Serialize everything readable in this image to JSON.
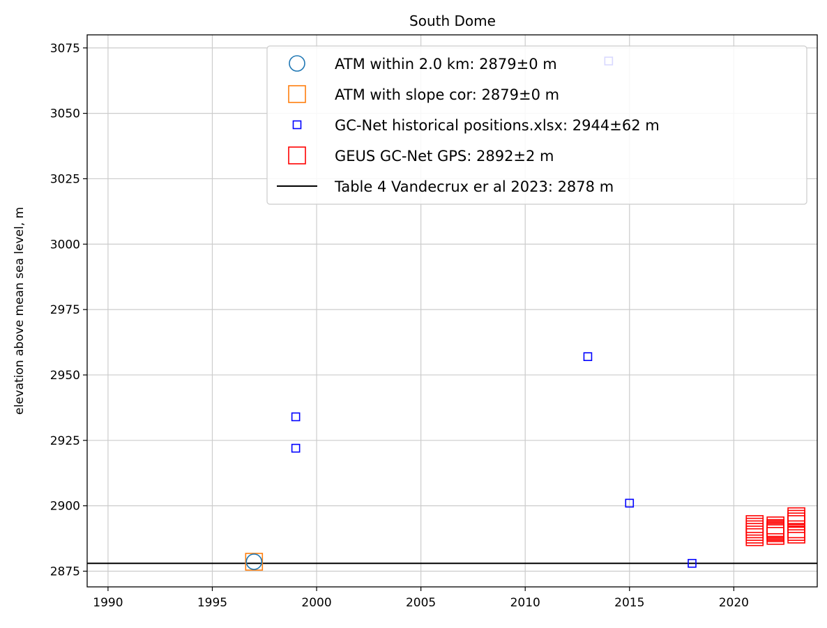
{
  "chart_data": {
    "type": "scatter",
    "title": "South Dome",
    "xlabel": "",
    "ylabel": "elevation above mean sea level, m",
    "xlim": [
      1989,
      2024
    ],
    "ylim": [
      2869,
      3080
    ],
    "xticks": [
      1990,
      1995,
      2000,
      2005,
      2010,
      2015,
      2020
    ],
    "yticks": [
      2875,
      2900,
      2925,
      2950,
      2975,
      3000,
      3025,
      3050,
      3075
    ],
    "grid": true,
    "legend_position": "top-right",
    "series": [
      {
        "name": "ATM within 2.0 km: 2879±0 m",
        "marker": "circle",
        "color": "#1f77b4",
        "x": [
          1997.0
        ],
        "y": [
          2878.6
        ]
      },
      {
        "name": "ATM with slope cor: 2879±0 m",
        "marker": "square",
        "color": "#ff7f0e",
        "x": [
          1997.0
        ],
        "y": [
          2878.6
        ]
      },
      {
        "name": "GC-Net historical positions.xlsx: 2944±62 m",
        "marker": "square-small",
        "color": "#0000ff",
        "x": [
          1999.0,
          1999.0,
          2013.0,
          2014.0,
          2015.0,
          2018.0
        ],
        "y": [
          2934.0,
          2922.0,
          2957.0,
          3070.0,
          2901.0,
          2878.0
        ]
      },
      {
        "name": "GEUS GC-Net GPS: 2892±2 m",
        "marker": "square",
        "color": "#ff0000",
        "x": [
          2021.0,
          2021.0,
          2021.0,
          2021.0,
          2021.0,
          2021.0,
          2022.0,
          2022.0,
          2022.0,
          2022.0,
          2022.0,
          2022.0,
          2022.0,
          2023.0,
          2023.0,
          2023.0,
          2023.0,
          2023.0,
          2023.0,
          2023.0
        ],
        "y": [
          2888.0,
          2889.0,
          2890.0,
          2891.0,
          2892.0,
          2893.0,
          2888.5,
          2889.5,
          2890.0,
          2890.5,
          2891.0,
          2891.5,
          2892.5,
          2889.0,
          2890.0,
          2891.0,
          2893.0,
          2894.0,
          2895.0,
          2896.0
        ]
      }
    ],
    "reference_line": {
      "name": "Table 4 Vandecrux er al 2023: 2878 m",
      "y": 2878,
      "color": "#000000"
    }
  }
}
